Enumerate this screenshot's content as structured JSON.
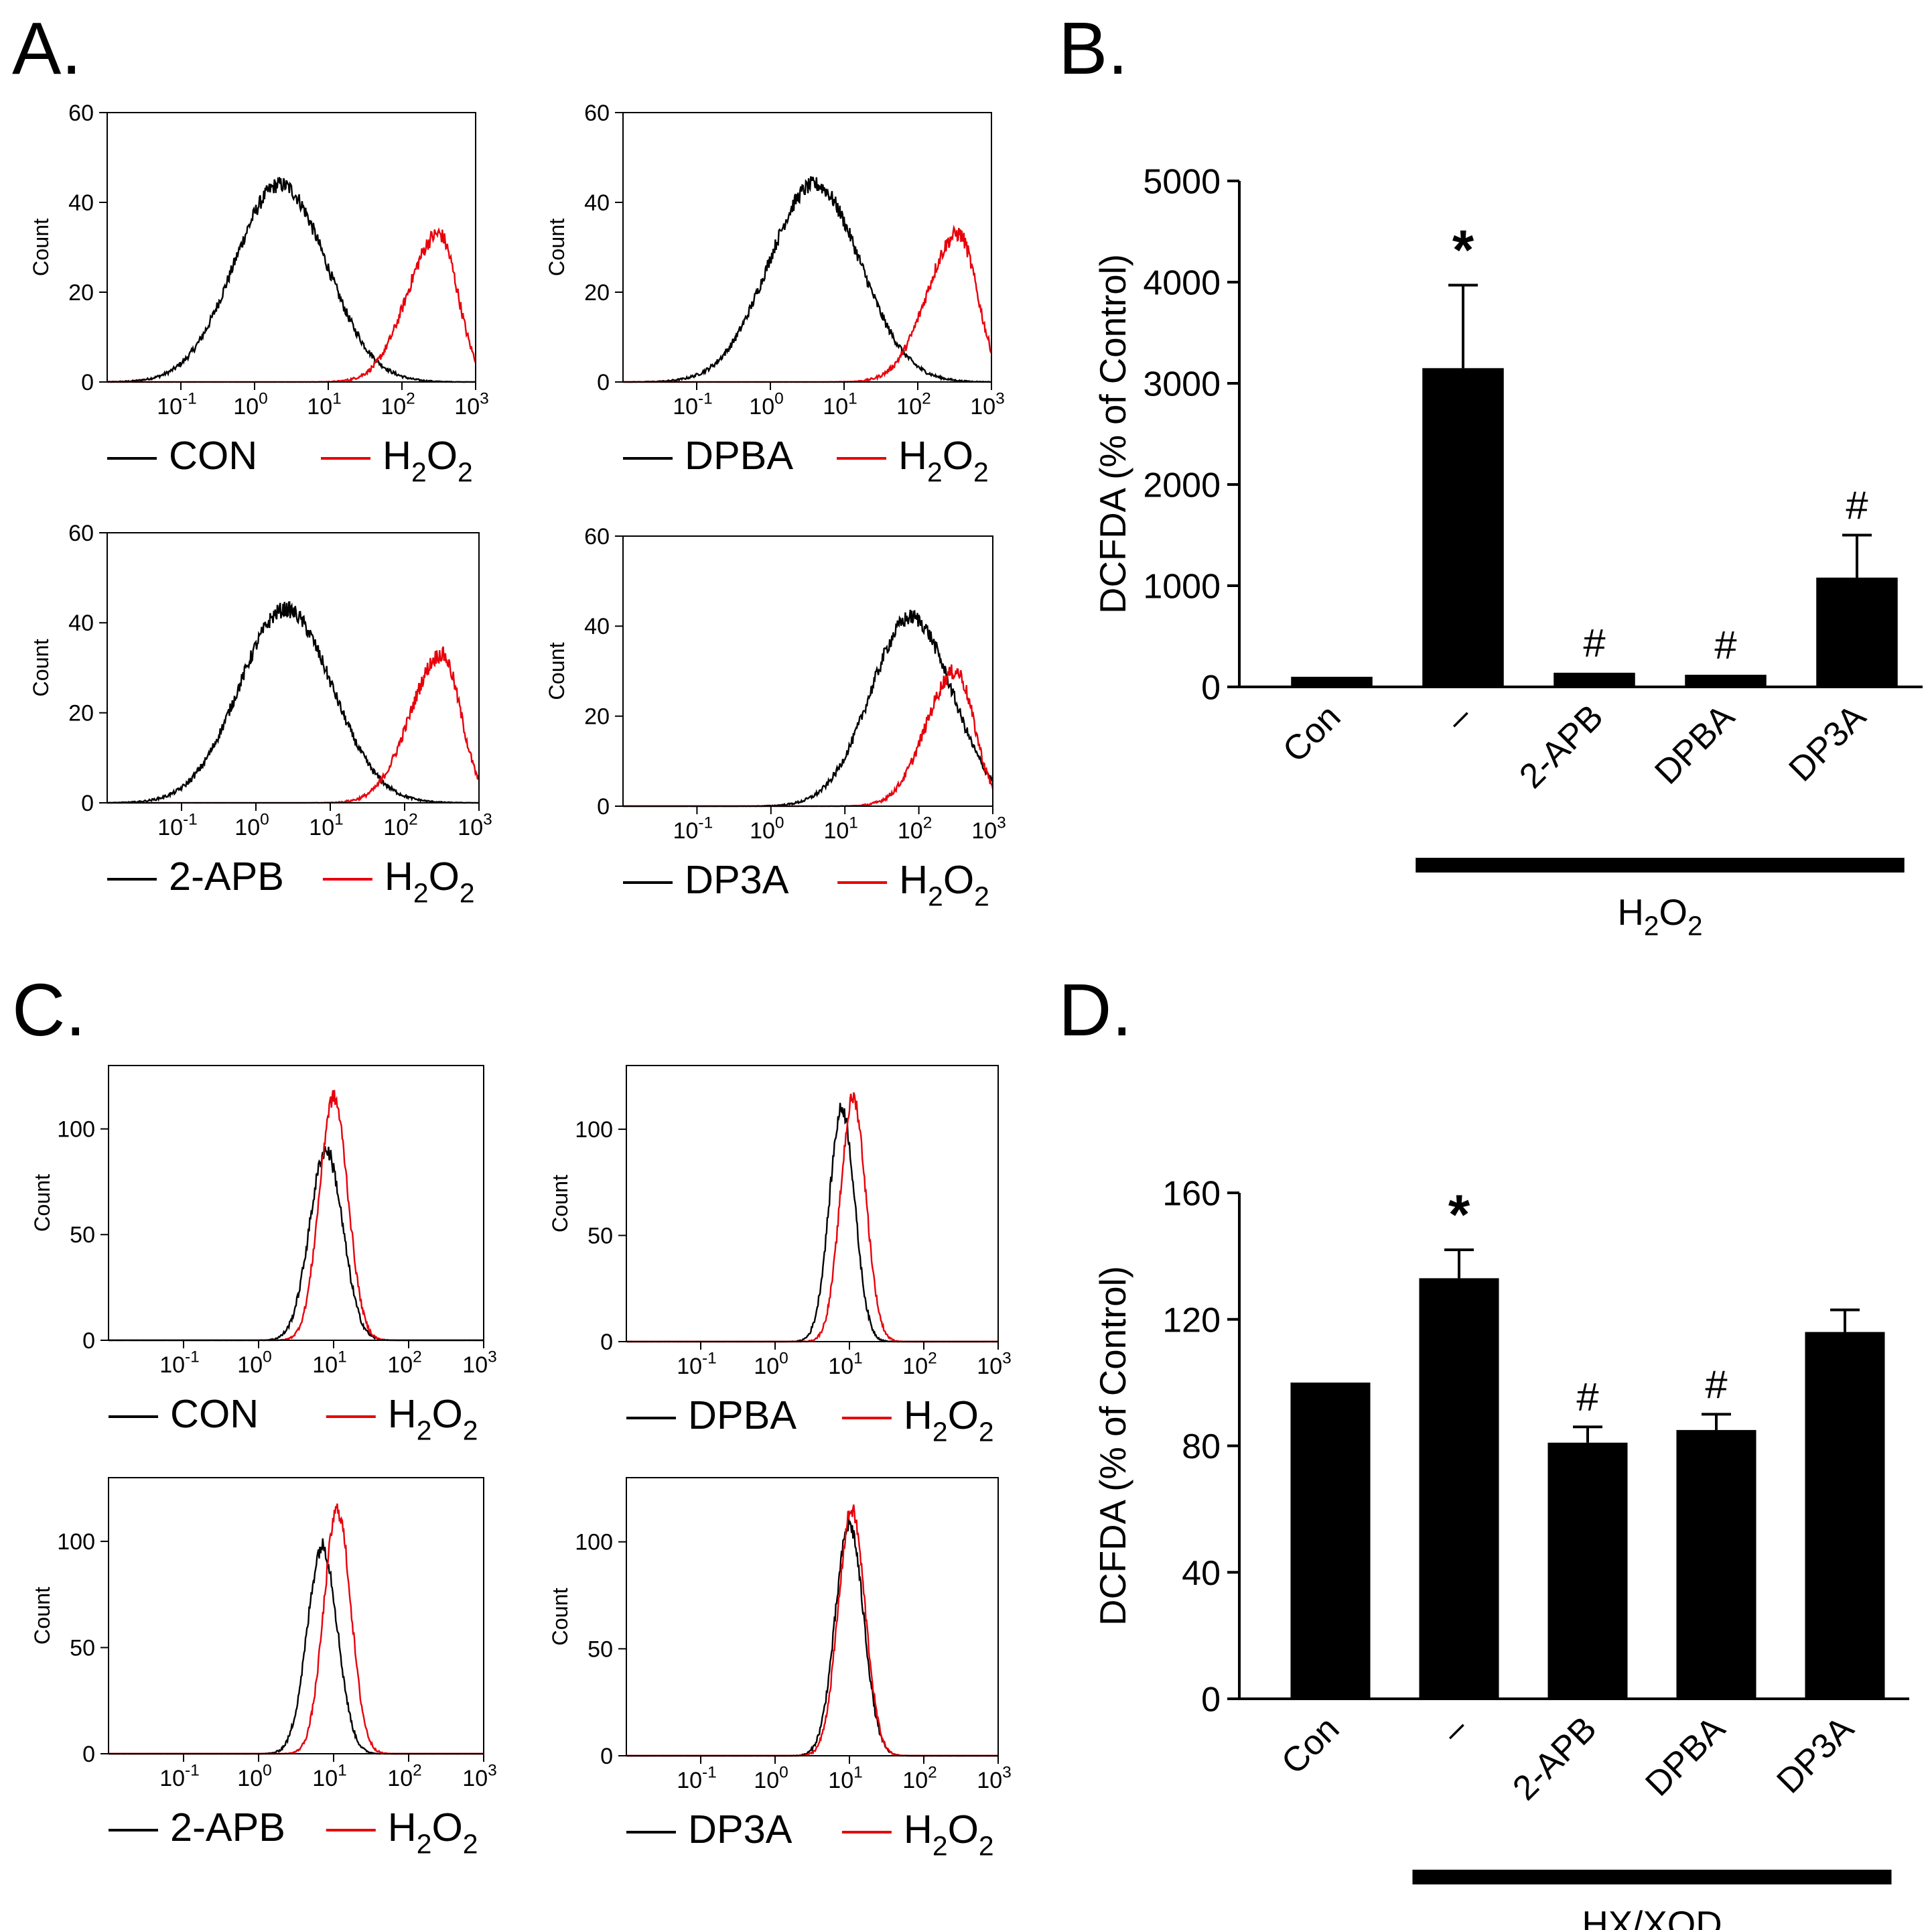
{
  "chart_data": [
    {
      "panel": "A.",
      "type": "line",
      "ylabel": "Count",
      "y_ticks": [
        0,
        20,
        40,
        60
      ],
      "ylim": [
        0,
        60
      ],
      "x_tick_labels": [
        {
          "base": "10",
          "exp": "-1"
        },
        {
          "base": "10",
          "exp": "0"
        },
        {
          "base": "10",
          "exp": "1"
        },
        {
          "base": "10",
          "exp": "2"
        },
        {
          "base": "10",
          "exp": "3"
        }
      ],
      "xscale": "log",
      "xlim": [
        0.01,
        1000
      ],
      "curve_colors": {
        "black": "#000000",
        "red": "#e8000b"
      },
      "subplots": [
        {
          "legend": {
            "control": "CON",
            "treat_base": "H",
            "treat_sub1": "2",
            "treat_mid": "O",
            "treat_sub2": "2"
          },
          "series": [
            {
              "color": "black",
              "peak_log": 0.35,
              "width": 0.62,
              "height": 44
            },
            {
              "color": "red",
              "peak_log": 2.5,
              "width": 0.42,
              "height": 33
            }
          ]
        },
        {
          "legend": {
            "control": "DPBA",
            "treat_base": "H",
            "treat_sub1": "2",
            "treat_mid": "O",
            "treat_sub2": "2"
          },
          "series": [
            {
              "color": "black",
              "peak_log": 0.6,
              "width": 0.62,
              "height": 44
            },
            {
              "color": "red",
              "peak_log": 2.55,
              "width": 0.42,
              "height": 33
            }
          ]
        },
        {
          "legend": {
            "control": "2-APB",
            "treat_base": "H",
            "treat_sub1": "2",
            "treat_mid": "O",
            "treat_sub2": "2"
          },
          "series": [
            {
              "color": "black",
              "peak_log": 0.4,
              "width": 0.62,
              "height": 43
            },
            {
              "color": "red",
              "peak_log": 2.5,
              "width": 0.42,
              "height": 33
            }
          ]
        },
        {
          "legend": {
            "control": "DP3A",
            "treat_base": "H",
            "treat_sub1": "2",
            "treat_mid": "O",
            "treat_sub2": "2"
          },
          "series": [
            {
              "color": "black",
              "peak_log": 1.9,
              "width": 0.55,
              "height": 42
            },
            {
              "color": "red",
              "peak_log": 2.5,
              "width": 0.4,
              "height": 30
            }
          ]
        }
      ]
    },
    {
      "panel": "B.",
      "type": "bar",
      "categories": [
        "Con",
        "–",
        "2-APB",
        "DPBA",
        "DP3A"
      ],
      "values": [
        100,
        3150,
        140,
        120,
        1080
      ],
      "errors": [
        0,
        820,
        0,
        0,
        420
      ],
      "annotations": [
        "",
        "*",
        "#",
        "#",
        "#"
      ],
      "ylabel": "DCFDA (% of Control)",
      "y_ticks": [
        0,
        1000,
        2000,
        3000,
        4000,
        5000
      ],
      "ylim": [
        0,
        5000
      ],
      "group_label": {
        "base": "H",
        "sub1": "2",
        "mid": "O",
        "sub2": "2"
      }
    },
    {
      "panel": "C.",
      "type": "line",
      "ylabel": "Count",
      "y_ticks": [
        0,
        50,
        100
      ],
      "ylim": [
        0,
        130
      ],
      "x_tick_labels": [
        {
          "base": "10",
          "exp": "-1"
        },
        {
          "base": "10",
          "exp": "0"
        },
        {
          "base": "10",
          "exp": "1"
        },
        {
          "base": "10",
          "exp": "2"
        },
        {
          "base": "10",
          "exp": "3"
        }
      ],
      "xscale": "log",
      "xlim": [
        0.01,
        1000
      ],
      "subplots": [
        {
          "legend": {
            "control": "CON",
            "treat_base": "H",
            "treat_sub1": "2",
            "treat_mid": "O",
            "treat_sub2": "2"
          },
          "series": [
            {
              "color": "black",
              "peak_log": 0.9,
              "width": 0.22,
              "height": 90
            },
            {
              "color": "red",
              "peak_log": 1.0,
              "width": 0.19,
              "height": 115
            }
          ]
        },
        {
          "legend": {
            "control": "DPBA",
            "treat_base": "H",
            "treat_sub1": "2",
            "treat_mid": "O",
            "treat_sub2": "2"
          },
          "series": [
            {
              "color": "black",
              "peak_log": 0.9,
              "width": 0.17,
              "height": 110
            },
            {
              "color": "red",
              "peak_log": 1.05,
              "width": 0.17,
              "height": 115
            }
          ]
        },
        {
          "legend": {
            "control": "2-APB",
            "treat_base": "H",
            "treat_sub1": "2",
            "treat_mid": "O",
            "treat_sub2": "2"
          },
          "series": [
            {
              "color": "black",
              "peak_log": 0.85,
              "width": 0.2,
              "height": 98
            },
            {
              "color": "red",
              "peak_log": 1.05,
              "width": 0.18,
              "height": 115
            }
          ]
        },
        {
          "legend": {
            "control": "DP3A",
            "treat_base": "H",
            "treat_sub1": "2",
            "treat_mid": "O",
            "treat_sub2": "2"
          },
          "series": [
            {
              "color": "black",
              "peak_log": 1.0,
              "width": 0.19,
              "height": 108
            },
            {
              "color": "red",
              "peak_log": 1.03,
              "width": 0.18,
              "height": 115
            }
          ]
        }
      ]
    },
    {
      "panel": "D.",
      "type": "bar",
      "categories": [
        "Con",
        "–",
        "2-APB",
        "DPBA",
        "DP3A"
      ],
      "values": [
        100,
        133,
        81,
        85,
        116
      ],
      "errors": [
        0,
        9,
        5,
        5,
        7
      ],
      "annotations": [
        "",
        "*",
        "#",
        "#",
        ""
      ],
      "ylabel": "DCFDA (% of Control)",
      "y_ticks": [
        0,
        40,
        80,
        120,
        160
      ],
      "ylim": [
        0,
        160
      ],
      "group_label": {
        "base": "HX/XOD",
        "sub1": "",
        "mid": "",
        "sub2": ""
      }
    }
  ]
}
